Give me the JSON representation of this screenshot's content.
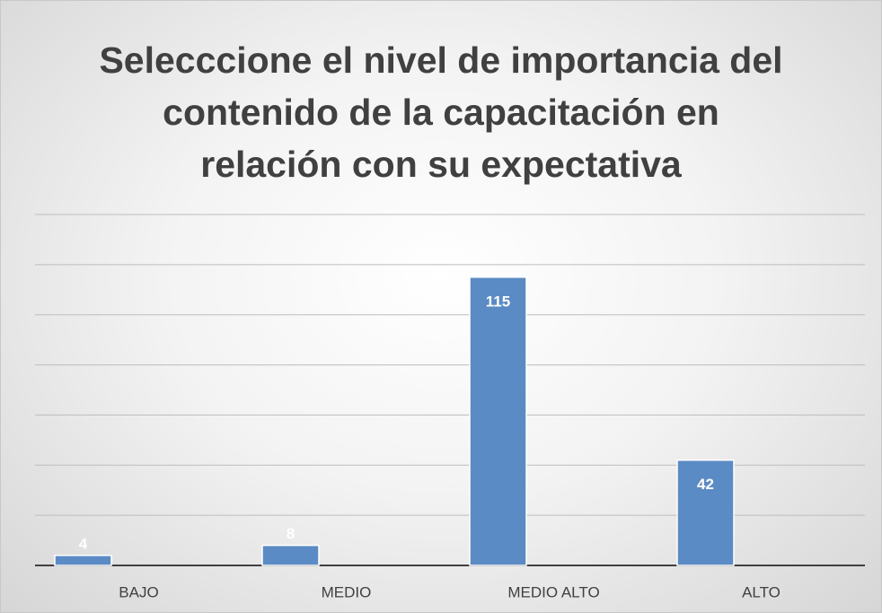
{
  "chart_data": {
    "type": "bar",
    "title": [
      "Selecccione el nivel de importancia del",
      "contenido de la capacitación en",
      "relación con su expectativa"
    ],
    "categories": [
      "BAJO",
      "MEDIO",
      "MEDIO ALTO",
      "ALTO"
    ],
    "values": [
      4,
      8,
      115,
      42
    ],
    "color": "#5b8bc4",
    "ylim": [
      0,
      140
    ],
    "yticks": [
      0,
      20,
      40,
      60,
      80,
      100,
      120,
      140
    ],
    "grid": true
  }
}
